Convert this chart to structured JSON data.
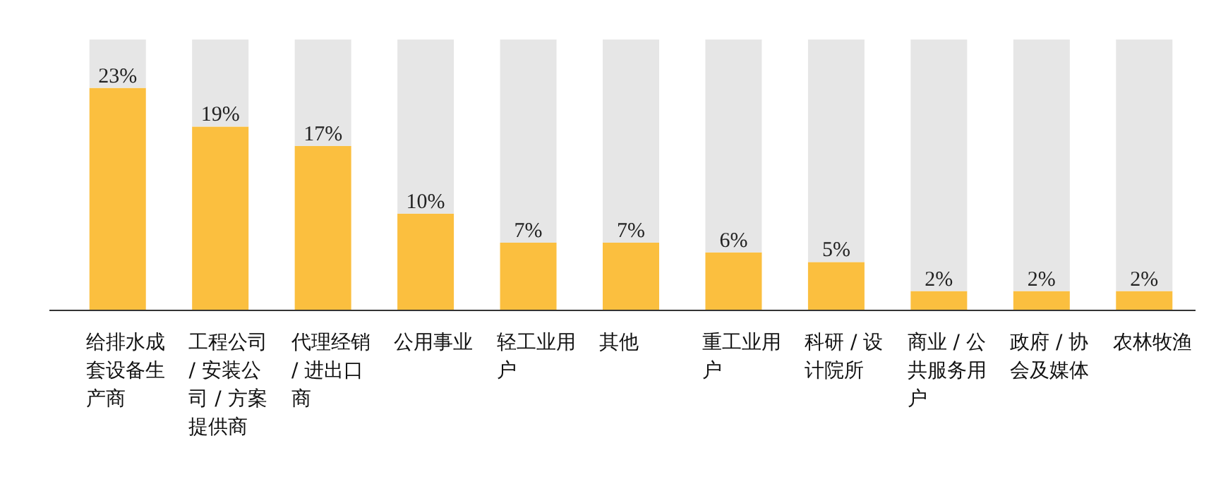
{
  "chart_data": {
    "type": "bar",
    "categories": [
      "给排水成套设备生产商",
      "工程公司 / 安装公司 / 方案提供商",
      "代理经销 / 进出口商",
      "公用事业",
      "轻工业用户",
      "其他",
      "重工业用户",
      "科研 / 设计院所",
      "商业 / 公共服务用户",
      "政府 / 协会及媒体",
      "农林牧渔"
    ],
    "ylim": [
      0,
      28
    ],
    "tick_labels": "x",
    "stacked": true,
    "series": [
      {
        "color": "#fbbf3f",
        "values": [
          23,
          19,
          17,
          10,
          7,
          7,
          6,
          5,
          2,
          2,
          2
        ],
        "value_labels": [
          "23%",
          "19%",
          "17%",
          "10%",
          "7%",
          "7%",
          "6%",
          "5%",
          "2%",
          "2%",
          "2%"
        ]
      },
      {
        "color": "#e6e6e6",
        "values": [
          5,
          9,
          11,
          18,
          21,
          21,
          22,
          23,
          26,
          26,
          26
        ]
      }
    ]
  }
}
